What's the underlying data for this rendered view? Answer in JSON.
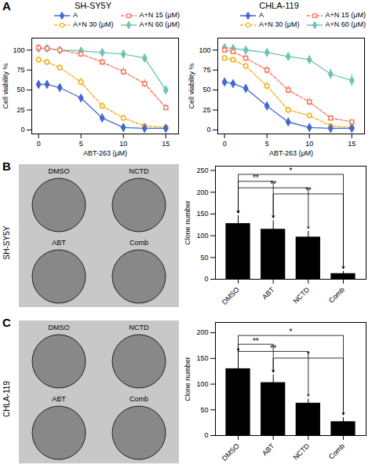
{
  "chart_data": [
    {
      "type": "line",
      "title": "SH-SY5Y",
      "xlabel": "ABT-263 (μM)",
      "ylabel": "Cell viability %",
      "x": [
        0,
        1,
        2.5,
        5,
        7.5,
        10,
        12.5,
        15
      ],
      "xlim": [
        -0.8,
        16.5
      ],
      "xticks": [
        0,
        5,
        10,
        15
      ],
      "ylim": [
        -5,
        115
      ],
      "yticks": [
        0,
        25,
        50,
        75,
        100
      ],
      "grid": false,
      "legend": "upper right",
      "annotations": [
        {
          "text": "A"
        }
      ],
      "series": [
        {
          "name": "A",
          "values": [
            57,
            57,
            53,
            40,
            15,
            3,
            2,
            2
          ],
          "errors": [
            3,
            3,
            3,
            4,
            5,
            2,
            1,
            1
          ],
          "marker": "diamond",
          "line_style": "solid"
        },
        {
          "name": "A+N 30 (μM)",
          "values": [
            88,
            85,
            78,
            60,
            30,
            15,
            5,
            3
          ],
          "errors": [
            4,
            4,
            4,
            5,
            4,
            3,
            2,
            1
          ],
          "marker": "open_circle",
          "line_style": "dashed"
        },
        {
          "name": "A+N 15 (μM)",
          "values": [
            103,
            102,
            100,
            95,
            85,
            73,
            58,
            28
          ],
          "errors": [
            3,
            3,
            3,
            3,
            4,
            5,
            5,
            4
          ],
          "marker": "open_square",
          "line_style": "dashed"
        },
        {
          "name": "A+N 60 (μM)",
          "values": [
            102,
            102,
            100,
            99,
            97,
            95,
            90,
            50
          ],
          "errors": [
            2,
            2,
            2,
            2,
            2,
            3,
            5,
            5
          ],
          "marker": "diamond",
          "line_style": "solid"
        }
      ]
    },
    {
      "type": "line",
      "title": "CHLA-119",
      "xlabel": "ABT-263 (μM)",
      "ylabel": "Cell viability %",
      "x": [
        0,
        1,
        2.5,
        5,
        7.5,
        10,
        12.5,
        15
      ],
      "xlim": [
        -0.8,
        16.5
      ],
      "xticks": [
        0,
        5,
        10,
        15
      ],
      "ylim": [
        -5,
        115
      ],
      "yticks": [
        0,
        25,
        50,
        75,
        100
      ],
      "grid": false,
      "legend": "upper right",
      "series": [
        {
          "name": "A",
          "values": [
            60,
            58,
            52,
            30,
            10,
            3,
            2,
            2
          ],
          "errors": [
            3,
            3,
            3,
            4,
            4,
            2,
            1,
            1
          ],
          "marker": "diamond",
          "line_style": "solid"
        },
        {
          "name": "A+N 30 (μM)",
          "values": [
            90,
            88,
            80,
            55,
            25,
            18,
            5,
            3
          ],
          "errors": [
            3,
            3,
            4,
            5,
            4,
            3,
            2,
            1
          ],
          "marker": "open_circle",
          "line_style": "dashed"
        },
        {
          "name": "A+N 15 (μM)",
          "values": [
            100,
            98,
            90,
            75,
            50,
            35,
            15,
            10
          ],
          "errors": [
            3,
            3,
            4,
            5,
            5,
            5,
            3,
            3
          ],
          "marker": "open_square",
          "line_style": "dashed"
        },
        {
          "name": "A+N 60 (μM)",
          "values": [
            103,
            102,
            100,
            97,
            92,
            88,
            70,
            62
          ],
          "errors": [
            2,
            2,
            2,
            2,
            3,
            5,
            7,
            8
          ],
          "marker": "diamond",
          "line_style": "solid"
        }
      ]
    },
    {
      "type": "image",
      "ylabel": "SH-SY5Y",
      "categories": [
        "DMSO",
        "NCTD",
        "ABT",
        "Comb"
      ],
      "annotations": [
        {
          "text": "B"
        }
      ]
    },
    {
      "type": "bar",
      "ylabel": "Clone number",
      "categories": [
        "DMSO",
        "ABT",
        "NCTD",
        "Comb"
      ],
      "values": [
        128,
        115,
        97,
        13
      ],
      "errors": [
        18,
        20,
        13,
        5
      ],
      "color": "#000000",
      "ylim": [
        0,
        260
      ],
      "yticks": [
        0,
        50,
        100,
        150,
        200,
        250
      ],
      "annotations": [
        {
          "text": "**",
          "between": [
            "DMSO",
            "ABT"
          ],
          "y": 222
        },
        {
          "text": "**",
          "between": [
            "DMSO",
            "NCTD"
          ],
          "y": 207
        },
        {
          "text": "**",
          "between": [
            "ABT",
            "Comb"
          ],
          "y": 193
        },
        {
          "text": "*",
          "between": [
            "DMSO",
            "Comb"
          ],
          "y": 238
        }
      ]
    },
    {
      "type": "image",
      "ylabel": "CHLA-119",
      "categories": [
        "DMSO",
        "NCTD",
        "ABT",
        "Comb"
      ],
      "annotations": [
        {
          "text": "C"
        }
      ]
    },
    {
      "type": "bar",
      "ylabel": "Clone number",
      "categories": [
        "DMSO",
        "ABT",
        "NCTD",
        "Comb"
      ],
      "values": [
        130,
        103,
        63,
        27
      ],
      "errors": [
        30,
        15,
        8,
        8
      ],
      "color": "#000000",
      "ylim": [
        0,
        220
      ],
      "yticks": [
        0,
        50,
        100,
        150,
        200
      ],
      "annotations": [
        {
          "text": "**",
          "between": [
            "DMSO",
            "ABT"
          ],
          "y": 175
        },
        {
          "text": "**",
          "between": [
            "DMSO",
            "NCTD"
          ],
          "y": 161
        },
        {
          "text": "*",
          "between": [
            "ABT",
            "Comb"
          ],
          "y": 148
        },
        {
          "text": "*",
          "between": [
            "DMSO",
            "Comb"
          ],
          "y": 192
        }
      ]
    }
  ]
}
